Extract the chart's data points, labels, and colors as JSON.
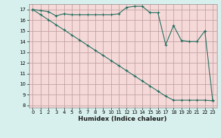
{
  "title": "",
  "xlabel": "Humidex (Indice chaleur)",
  "bg_color": "#d8f0ed",
  "plot_bg_color": "#f5d8d8",
  "grid_color": "#c0a0a0",
  "line_color": "#1a6b5a",
  "line1_x": [
    0,
    1,
    2,
    3,
    4,
    5,
    6,
    7,
    8,
    9,
    10,
    11,
    12,
    13,
    14,
    15,
    16,
    17,
    18,
    19,
    20,
    21,
    22,
    23
  ],
  "line1_y": [
    17.0,
    16.9,
    16.8,
    16.4,
    16.6,
    16.5,
    16.5,
    16.5,
    16.5,
    16.5,
    16.5,
    16.6,
    17.2,
    17.3,
    17.3,
    16.7,
    16.7,
    13.7,
    15.5,
    14.1,
    14.0,
    14.0,
    15.0,
    8.5
  ],
  "line2_x": [
    0,
    1,
    2,
    3,
    4,
    5,
    6,
    7,
    8,
    9,
    10,
    11,
    12,
    13,
    14,
    15,
    16,
    17,
    18,
    19,
    20,
    21,
    22,
    23
  ],
  "line2_y": [
    17.0,
    16.52,
    16.04,
    15.56,
    15.09,
    14.61,
    14.13,
    13.65,
    13.17,
    12.7,
    12.22,
    11.74,
    11.26,
    10.78,
    10.3,
    9.83,
    9.35,
    8.87,
    8.5,
    8.5,
    8.5,
    8.5,
    8.5,
    8.45
  ],
  "xlim": [
    -0.5,
    23.5
  ],
  "ylim": [
    7.8,
    17.5
  ],
  "yticks": [
    8,
    9,
    10,
    11,
    12,
    13,
    14,
    15,
    16,
    17
  ],
  "xticks": [
    0,
    1,
    2,
    3,
    4,
    5,
    6,
    7,
    8,
    9,
    10,
    11,
    12,
    13,
    14,
    15,
    16,
    17,
    18,
    19,
    20,
    21,
    22,
    23
  ],
  "xlabel_fontsize": 6.5,
  "tick_fontsize": 5.0
}
